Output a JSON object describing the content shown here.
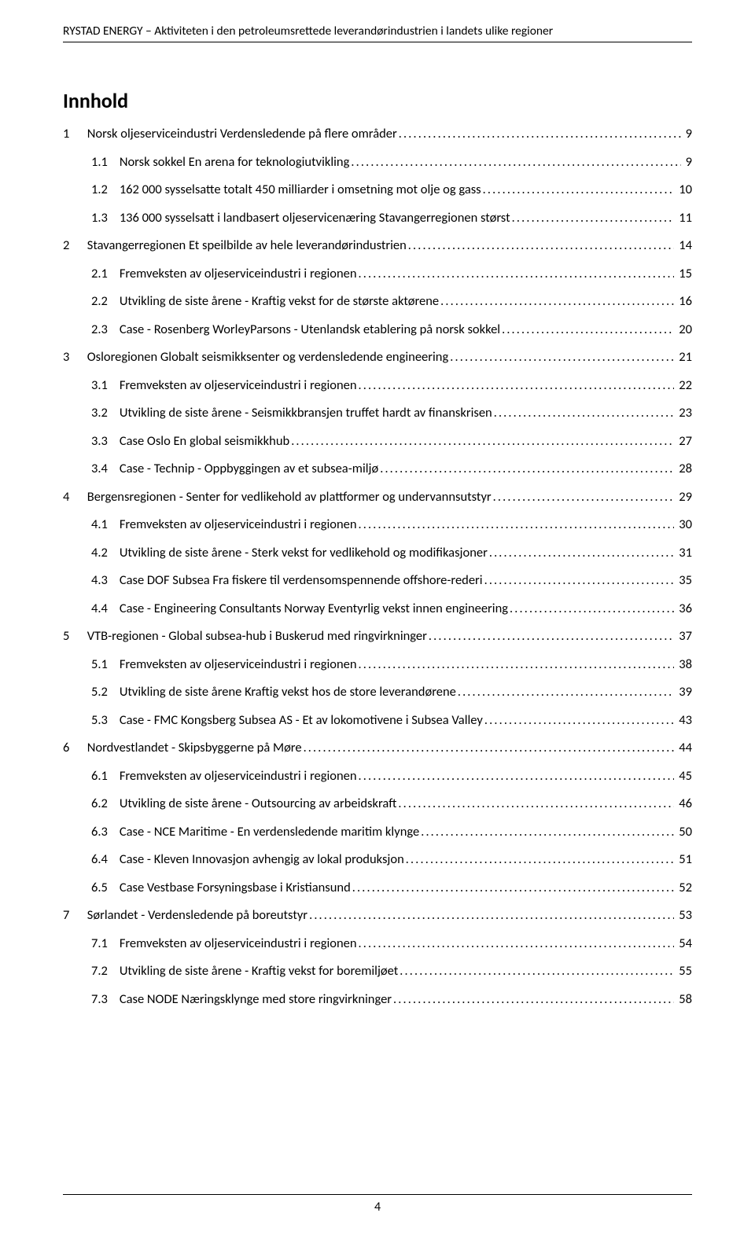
{
  "header": "RYSTAD ENERGY – Aktiviteten i den petroleumsrettede leverandørindustrien i landets ulike regioner",
  "title": "Innhold",
  "page_number": "4",
  "toc": [
    {
      "level": 1,
      "num": "1",
      "text": "Norsk oljeserviceindustri Verdensledende på flere områder",
      "page": "9"
    },
    {
      "level": 2,
      "num": "1.1",
      "text": "Norsk sokkel En arena for teknologiutvikling",
      "page": "9"
    },
    {
      "level": 2,
      "num": "1.2",
      "text": "162 000 sysselsatte totalt 450 milliarder i omsetning mot olje og gass",
      "page": "10"
    },
    {
      "level": 2,
      "num": "1.3",
      "text": "136 000 sysselsatt i landbasert oljeservicenæring Stavangerregionen størst",
      "page": "11"
    },
    {
      "level": 1,
      "num": "2",
      "text": "Stavangerregionen Et speilbilde av hele leverandørindustrien",
      "page": "14"
    },
    {
      "level": 2,
      "num": "2.1",
      "text": "Fremveksten av oljeserviceindustri i regionen",
      "page": "15"
    },
    {
      "level": 2,
      "num": "2.2",
      "text": "Utvikling de siste årene - Kraftig vekst for de største aktørene",
      "page": "16"
    },
    {
      "level": 2,
      "num": "2.3",
      "text": "Case - Rosenberg WorleyParsons - Utenlandsk etablering på norsk sokkel",
      "page": "20"
    },
    {
      "level": 1,
      "num": "3",
      "text": "Osloregionen Globalt seismikksenter og verdensledende engineering",
      "page": "21"
    },
    {
      "level": 2,
      "num": "3.1",
      "text": "Fremveksten av oljeserviceindustri i regionen",
      "page": "22"
    },
    {
      "level": 2,
      "num": "3.2",
      "text": "Utvikling de siste årene - Seismikkbransjen truffet hardt av finanskrisen",
      "page": "23"
    },
    {
      "level": 2,
      "num": "3.3",
      "text": "Case Oslo En global seismikkhub",
      "page": "27"
    },
    {
      "level": 2,
      "num": "3.4",
      "text": "Case - Technip - Oppbyggingen av et subsea-miljø",
      "page": "28"
    },
    {
      "level": 1,
      "num": "4",
      "text": "Bergensregionen - Senter for vedlikehold av plattformer og undervannsutstyr",
      "page": "29"
    },
    {
      "level": 2,
      "num": "4.1",
      "text": "Fremveksten av oljeserviceindustri i regionen",
      "page": "30"
    },
    {
      "level": 2,
      "num": "4.2",
      "text": "Utvikling de siste årene - Sterk vekst for vedlikehold og modifikasjoner",
      "page": "31"
    },
    {
      "level": 2,
      "num": "4.3",
      "text": "Case DOF Subsea Fra fiskere til verdensomspennende offshore-rederi",
      "page": "35"
    },
    {
      "level": 2,
      "num": "4.4",
      "text": "Case - Engineering Consultants Norway Eventyrlig vekst innen engineering",
      "page": "36"
    },
    {
      "level": 1,
      "num": "5",
      "text": "VTB-regionen - Global subsea-hub i Buskerud med ringvirkninger",
      "page": "37"
    },
    {
      "level": 2,
      "num": "5.1",
      "text": "Fremveksten av oljeserviceindustri i regionen",
      "page": "38"
    },
    {
      "level": 2,
      "num": "5.2",
      "text": "Utvikling de siste årene Kraftig vekst hos de store leverandørene",
      "page": "39"
    },
    {
      "level": 2,
      "num": "5.3",
      "text": "Case - FMC Kongsberg Subsea AS - Et av lokomotivene i Subsea Valley",
      "page": "43"
    },
    {
      "level": 1,
      "num": "6",
      "text": "Nordvestlandet - Skipsbyggerne på Møre",
      "page": "44"
    },
    {
      "level": 2,
      "num": "6.1",
      "text": "Fremveksten av oljeserviceindustri i regionen",
      "page": "45"
    },
    {
      "level": 2,
      "num": "6.2",
      "text": "Utvikling de siste årene - Outsourcing av arbeidskraft",
      "page": "46"
    },
    {
      "level": 2,
      "num": "6.3",
      "text": "Case - NCE Maritime - En verdensledende maritim klynge",
      "page": "50"
    },
    {
      "level": 2,
      "num": "6.4",
      "text": "Case - Kleven Innovasjon avhengig av lokal produksjon",
      "page": "51"
    },
    {
      "level": 2,
      "num": "6.5",
      "text": "Case Vestbase Forsyningsbase i Kristiansund",
      "page": "52"
    },
    {
      "level": 1,
      "num": "7",
      "text": "Sørlandet - Verdensledende på boreutstyr",
      "page": "53"
    },
    {
      "level": 2,
      "num": "7.1",
      "text": "Fremveksten av oljeserviceindustri i regionen",
      "page": "54"
    },
    {
      "level": 2,
      "num": "7.2",
      "text": "Utvikling de siste årene - Kraftig vekst for boremiljøet",
      "page": "55"
    },
    {
      "level": 2,
      "num": "7.3",
      "text": "Case NODE Næringsklynge med store ringvirkninger",
      "page": "58"
    }
  ]
}
